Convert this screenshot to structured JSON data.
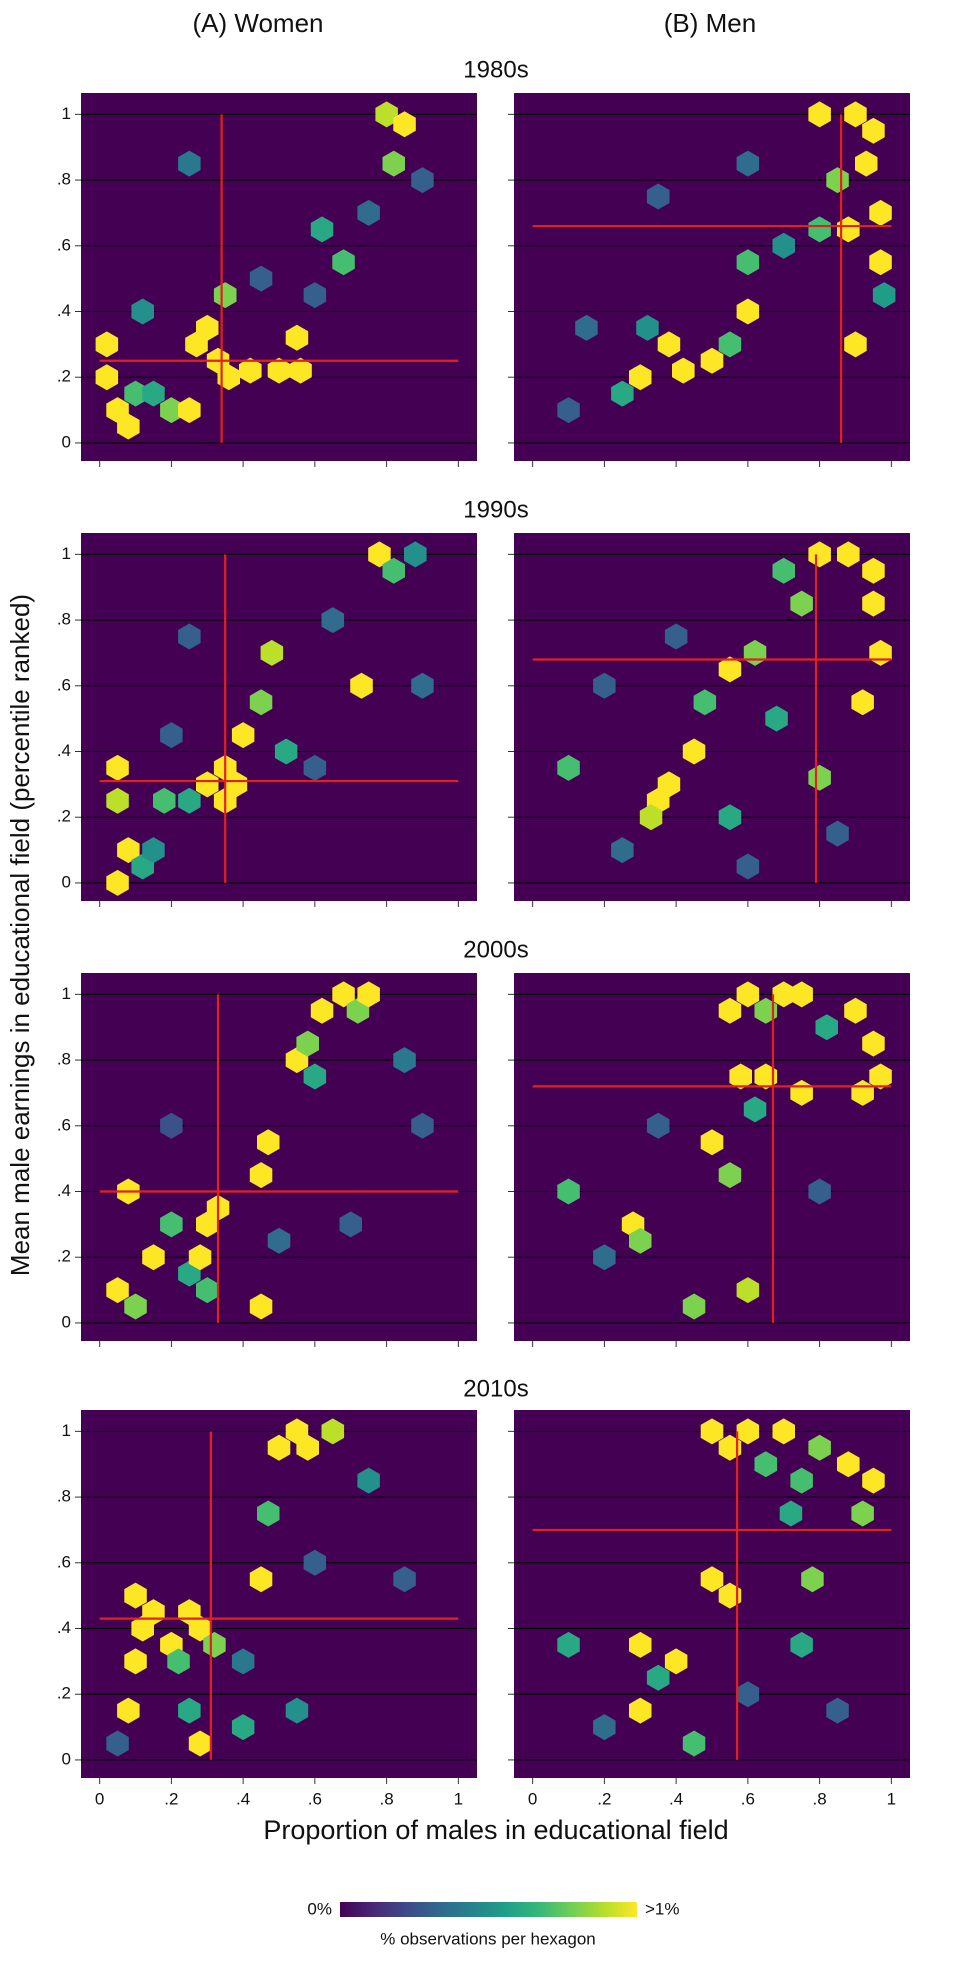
{
  "figure": {
    "column_titles": [
      "(A) Women",
      "(B) Men"
    ],
    "row_titles": [
      "1980s",
      "1990s",
      "2000s",
      "2010s"
    ],
    "x_label": "Proportion of males in educational field",
    "y_label": "Mean male earnings in educational field (percentile ranked)",
    "xlim": [
      -0.052,
      1.052
    ],
    "ylim": [
      -0.055,
      1.065
    ],
    "xticks": [
      0,
      {
        "value": 0.2,
        "label": ".2"
      },
      {
        "value": 0.4,
        "label": ".4"
      },
      {
        "value": 0.6,
        "label": ".6"
      },
      {
        "value": 0.8,
        "label": ".8"
      },
      1
    ],
    "yticks": [
      0,
      {
        "value": 0.2,
        "label": ".2"
      },
      {
        "value": 0.4,
        "label": ".4"
      },
      {
        "value": 0.6,
        "label": ".6"
      },
      {
        "value": 0.8,
        "label": ".8"
      },
      1
    ],
    "grid": true,
    "mean_line_color": "#e3211c",
    "colormap": [
      "#440154",
      "#482878",
      "#3e4989",
      "#31688e",
      "#26828e",
      "#1f9e89",
      "#35b779",
      "#6ece58",
      "#b5de2b",
      "#fde725"
    ],
    "colorbar": {
      "range": [
        0,
        1
      ],
      "min_label": "0%",
      "max_label": ">1%",
      "title": "% observations per hexagon"
    }
  },
  "chart_data": [
    {
      "type": "hexbin",
      "mean_x": 0.34,
      "mean_y": 0.25,
      "x": [
        0.02,
        0.02,
        0.05,
        0.08,
        0.1,
        0.15,
        0.2,
        0.25,
        0.27,
        0.3,
        0.33,
        0.36,
        0.35,
        0.42,
        0.5,
        0.55,
        0.56,
        0.62,
        0.68,
        0.8,
        0.85,
        0.82,
        0.12,
        0.45,
        0.75,
        0.9,
        0.25,
        0.6
      ],
      "y": [
        0.3,
        0.2,
        0.1,
        0.05,
        0.15,
        0.15,
        0.1,
        0.1,
        0.3,
        0.35,
        0.25,
        0.2,
        0.45,
        0.22,
        0.22,
        0.32,
        0.22,
        0.65,
        0.55,
        1.0,
        0.97,
        0.85,
        0.4,
        0.5,
        0.7,
        0.8,
        0.85,
        0.45
      ],
      "values": [
        1,
        1,
        1,
        1,
        0.7,
        0.6,
        0.8,
        1,
        1,
        1,
        1,
        1,
        0.8,
        1,
        1,
        1,
        1,
        0.6,
        0.7,
        0.9,
        1,
        0.8,
        0.5,
        0.3,
        0.35,
        0.3,
        0.4,
        0.3
      ]
    },
    {
      "type": "hexbin",
      "mean_x": 0.86,
      "mean_y": 0.66,
      "x": [
        0.8,
        0.9,
        0.95,
        0.93,
        0.97,
        0.97,
        0.85,
        0.8,
        0.88,
        0.9,
        0.6,
        0.6,
        0.55,
        0.5,
        0.42,
        0.38,
        0.3,
        0.25,
        0.32,
        0.7,
        0.15,
        0.1,
        0.35,
        0.6,
        0.98
      ],
      "y": [
        1.0,
        1.0,
        0.95,
        0.85,
        0.7,
        0.55,
        0.8,
        0.65,
        0.65,
        0.3,
        0.55,
        0.4,
        0.3,
        0.25,
        0.22,
        0.3,
        0.2,
        0.15,
        0.35,
        0.6,
        0.35,
        0.1,
        0.75,
        0.85,
        0.45
      ],
      "values": [
        1,
        1,
        1,
        1,
        1,
        1,
        0.8,
        0.7,
        1,
        1,
        0.7,
        1,
        0.7,
        1,
        1,
        1,
        1,
        0.6,
        0.5,
        0.5,
        0.35,
        0.3,
        0.3,
        0.35,
        0.55
      ]
    },
    {
      "type": "hexbin",
      "mean_x": 0.35,
      "mean_y": 0.31,
      "x": [
        0.05,
        0.05,
        0.08,
        0.05,
        0.12,
        0.18,
        0.25,
        0.3,
        0.35,
        0.38,
        0.35,
        0.4,
        0.45,
        0.48,
        0.52,
        0.73,
        0.78,
        0.82,
        0.88,
        0.15,
        0.6,
        0.65,
        0.25,
        0.9,
        0.2
      ],
      "y": [
        0.35,
        0.25,
        0.1,
        0.0,
        0.05,
        0.25,
        0.25,
        0.3,
        0.25,
        0.3,
        0.35,
        0.45,
        0.55,
        0.7,
        0.4,
        0.6,
        1.0,
        0.95,
        1.0,
        0.1,
        0.35,
        0.8,
        0.75,
        0.6,
        0.45
      ],
      "values": [
        1,
        0.9,
        1,
        1,
        0.6,
        0.7,
        0.6,
        1,
        1,
        1,
        1,
        1,
        0.8,
        0.9,
        0.6,
        1,
        1,
        0.7,
        0.5,
        0.5,
        0.3,
        0.35,
        0.3,
        0.35,
        0.3
      ]
    },
    {
      "type": "hexbin",
      "mean_x": 0.79,
      "mean_y": 0.68,
      "x": [
        0.8,
        0.88,
        0.95,
        0.95,
        0.97,
        0.92,
        0.7,
        0.75,
        0.55,
        0.62,
        0.48,
        0.45,
        0.38,
        0.35,
        0.33,
        0.1,
        0.55,
        0.68,
        0.8,
        0.25,
        0.2,
        0.6,
        0.85,
        0.4
      ],
      "y": [
        1.0,
        1.0,
        0.95,
        0.85,
        0.7,
        0.55,
        0.95,
        0.85,
        0.65,
        0.7,
        0.55,
        0.4,
        0.3,
        0.25,
        0.2,
        0.35,
        0.2,
        0.5,
        0.32,
        0.1,
        0.6,
        0.05,
        0.15,
        0.75
      ],
      "values": [
        1,
        1,
        1,
        1,
        1,
        1,
        0.7,
        0.8,
        1,
        0.8,
        0.7,
        1,
        1,
        1,
        0.9,
        0.7,
        0.6,
        0.6,
        0.8,
        0.35,
        0.3,
        0.3,
        0.3,
        0.3
      ]
    },
    {
      "type": "hexbin",
      "mean_x": 0.33,
      "mean_y": 0.4,
      "x": [
        0.08,
        0.05,
        0.1,
        0.15,
        0.2,
        0.25,
        0.28,
        0.3,
        0.33,
        0.3,
        0.45,
        0.47,
        0.45,
        0.55,
        0.58,
        0.62,
        0.68,
        0.72,
        0.75,
        0.6,
        0.85,
        0.9,
        0.7,
        0.5,
        0.2
      ],
      "y": [
        0.4,
        0.1,
        0.05,
        0.2,
        0.3,
        0.15,
        0.2,
        0.3,
        0.35,
        0.1,
        0.05,
        0.55,
        0.45,
        0.8,
        0.85,
        0.95,
        1.0,
        0.95,
        1.0,
        0.75,
        0.8,
        0.6,
        0.3,
        0.25,
        0.6
      ],
      "values": [
        1,
        1,
        0.8,
        1,
        0.7,
        0.6,
        1,
        1,
        1,
        0.7,
        1,
        1,
        1,
        1,
        0.8,
        1,
        1,
        0.8,
        1,
        0.6,
        0.4,
        0.3,
        0.3,
        0.35,
        0.25
      ]
    },
    {
      "type": "hexbin",
      "mean_x": 0.67,
      "mean_y": 0.72,
      "x": [
        0.55,
        0.6,
        0.65,
        0.7,
        0.75,
        0.82,
        0.9,
        0.95,
        0.97,
        0.92,
        0.58,
        0.65,
        0.75,
        0.5,
        0.55,
        0.1,
        0.28,
        0.3,
        0.45,
        0.6,
        0.62,
        0.2,
        0.8,
        0.35
      ],
      "y": [
        0.95,
        1.0,
        0.95,
        1.0,
        1.0,
        0.9,
        0.95,
        0.85,
        0.75,
        0.7,
        0.75,
        0.75,
        0.7,
        0.55,
        0.45,
        0.4,
        0.3,
        0.25,
        0.05,
        0.1,
        0.65,
        0.2,
        0.4,
        0.6
      ],
      "values": [
        1,
        1,
        0.8,
        1,
        1,
        0.6,
        1,
        1,
        1,
        1,
        1,
        1,
        1,
        1,
        0.8,
        0.7,
        1,
        0.8,
        0.8,
        0.9,
        0.6,
        0.35,
        0.3,
        0.3
      ]
    },
    {
      "type": "hexbin",
      "mean_x": 0.31,
      "mean_y": 0.43,
      "x": [
        0.1,
        0.12,
        0.1,
        0.08,
        0.15,
        0.2,
        0.25,
        0.28,
        0.22,
        0.25,
        0.28,
        0.32,
        0.4,
        0.45,
        0.47,
        0.5,
        0.55,
        0.58,
        0.65,
        0.75,
        0.4,
        0.6,
        0.85,
        0.05,
        0.55
      ],
      "y": [
        0.5,
        0.4,
        0.3,
        0.15,
        0.45,
        0.35,
        0.45,
        0.4,
        0.3,
        0.15,
        0.05,
        0.35,
        0.1,
        0.55,
        0.75,
        0.95,
        1.0,
        0.95,
        1.0,
        0.85,
        0.3,
        0.6,
        0.55,
        0.05,
        0.15
      ],
      "values": [
        1,
        1,
        1,
        1,
        1,
        1,
        1,
        1,
        0.7,
        0.6,
        1,
        0.8,
        0.6,
        1,
        0.7,
        1,
        1,
        1,
        0.9,
        0.5,
        0.4,
        0.3,
        0.3,
        0.3,
        0.5
      ]
    },
    {
      "type": "hexbin",
      "mean_x": 0.57,
      "mean_y": 0.7,
      "x": [
        0.5,
        0.55,
        0.6,
        0.65,
        0.7,
        0.75,
        0.8,
        0.88,
        0.95,
        0.92,
        0.72,
        0.5,
        0.55,
        0.3,
        0.4,
        0.35,
        0.1,
        0.3,
        0.45,
        0.78,
        0.75,
        0.2,
        0.85,
        0.6
      ],
      "y": [
        1.0,
        0.95,
        1.0,
        0.9,
        1.0,
        0.85,
        0.95,
        0.9,
        0.85,
        0.75,
        0.75,
        0.55,
        0.5,
        0.35,
        0.3,
        0.25,
        0.35,
        0.15,
        0.05,
        0.55,
        0.35,
        0.1,
        0.15,
        0.2
      ],
      "values": [
        1,
        1,
        1,
        0.7,
        1,
        0.7,
        0.8,
        1,
        1,
        0.8,
        0.6,
        1,
        1,
        1,
        1,
        0.6,
        0.6,
        1,
        0.7,
        0.8,
        0.6,
        0.35,
        0.3,
        0.3
      ]
    }
  ]
}
